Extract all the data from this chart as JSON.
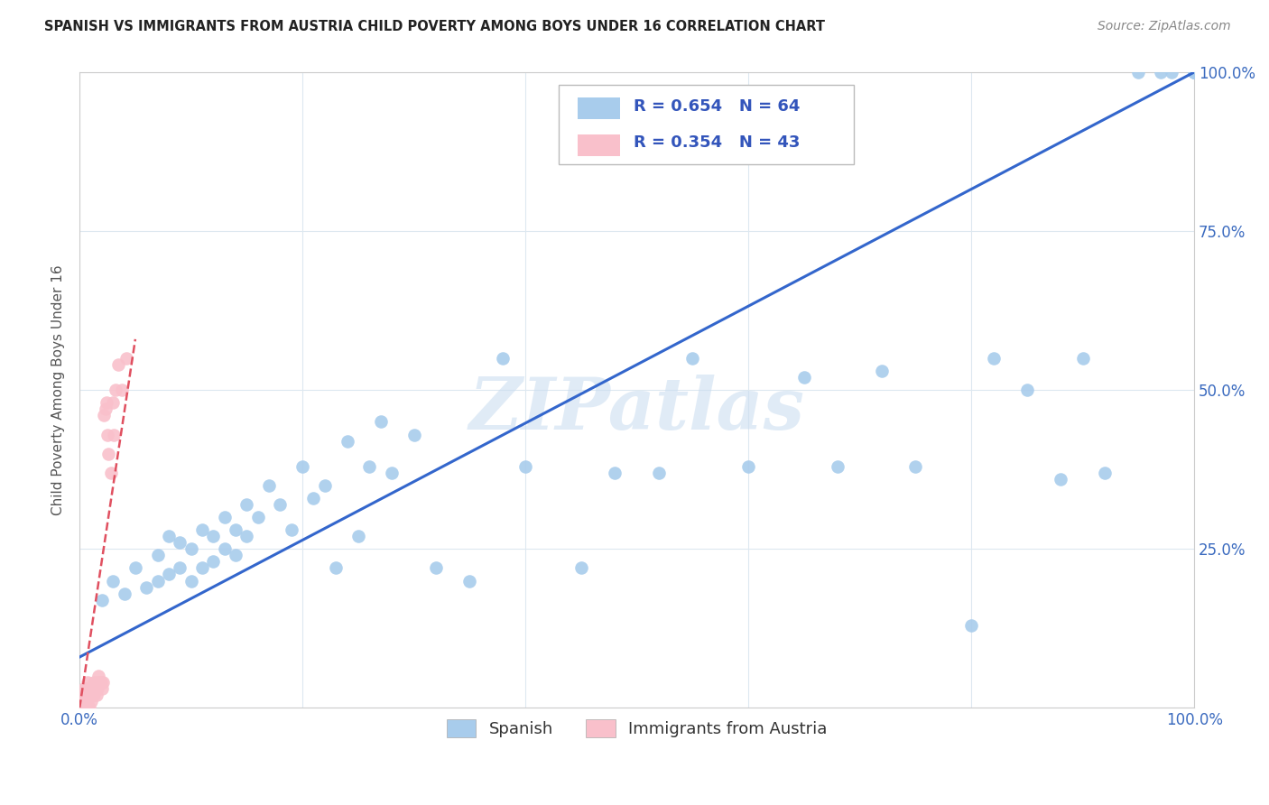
{
  "title": "SPANISH VS IMMIGRANTS FROM AUSTRIA CHILD POVERTY AMONG BOYS UNDER 16 CORRELATION CHART",
  "source": "Source: ZipAtlas.com",
  "ylabel": "Child Poverty Among Boys Under 16",
  "xlim": [
    0,
    1
  ],
  "ylim": [
    0,
    1
  ],
  "x_ticks": [
    0,
    0.2,
    0.4,
    0.6,
    0.8,
    1.0
  ],
  "y_ticks": [
    0,
    0.25,
    0.5,
    0.75,
    1.0
  ],
  "x_tick_labels": [
    "0.0%",
    "",
    "",
    "",
    "",
    "100.0%"
  ],
  "y_tick_labels_left": [
    "",
    "",
    "",
    "",
    ""
  ],
  "y_tick_labels_right": [
    "",
    "25.0%",
    "50.0%",
    "75.0%",
    "100.0%"
  ],
  "blue_color": "#a8ccec",
  "pink_color": "#f9c0cb",
  "trendline_blue_color": "#3366cc",
  "trendline_pink_color": "#e05060",
  "watermark": "ZIPatlas",
  "legend_blue_label": "R = 0.654   N = 64",
  "legend_pink_label": "R = 0.354   N = 43",
  "legend_bottom_blue": "Spanish",
  "legend_bottom_pink": "Immigrants from Austria",
  "blue_scatter_x": [
    0.02,
    0.03,
    0.04,
    0.05,
    0.06,
    0.07,
    0.07,
    0.08,
    0.08,
    0.09,
    0.09,
    0.1,
    0.1,
    0.11,
    0.11,
    0.12,
    0.12,
    0.13,
    0.13,
    0.14,
    0.14,
    0.15,
    0.15,
    0.16,
    0.17,
    0.18,
    0.19,
    0.2,
    0.21,
    0.22,
    0.23,
    0.24,
    0.25,
    0.26,
    0.27,
    0.28,
    0.3,
    0.32,
    0.35,
    0.38,
    0.4,
    0.45,
    0.48,
    0.52,
    0.55,
    0.6,
    0.65,
    0.68,
    0.72,
    0.75,
    0.8,
    0.82,
    0.85,
    0.88,
    0.9,
    0.92,
    0.95,
    0.97,
    0.98,
    1.0,
    1.0,
    1.0,
    1.0,
    1.0
  ],
  "blue_scatter_y": [
    0.17,
    0.2,
    0.18,
    0.22,
    0.19,
    0.2,
    0.24,
    0.21,
    0.27,
    0.22,
    0.26,
    0.2,
    0.25,
    0.22,
    0.28,
    0.23,
    0.27,
    0.25,
    0.3,
    0.24,
    0.28,
    0.27,
    0.32,
    0.3,
    0.35,
    0.32,
    0.28,
    0.38,
    0.33,
    0.35,
    0.22,
    0.42,
    0.27,
    0.38,
    0.45,
    0.37,
    0.43,
    0.22,
    0.2,
    0.55,
    0.38,
    0.22,
    0.37,
    0.37,
    0.55,
    0.38,
    0.52,
    0.38,
    0.53,
    0.38,
    0.13,
    0.55,
    0.5,
    0.36,
    0.55,
    0.37,
    1.0,
    1.0,
    1.0,
    1.0,
    1.0,
    1.0,
    1.0,
    1.0
  ],
  "pink_scatter_x": [
    0.002,
    0.003,
    0.003,
    0.004,
    0.004,
    0.005,
    0.005,
    0.005,
    0.006,
    0.006,
    0.007,
    0.007,
    0.008,
    0.008,
    0.009,
    0.009,
    0.01,
    0.01,
    0.011,
    0.012,
    0.013,
    0.013,
    0.014,
    0.015,
    0.015,
    0.016,
    0.017,
    0.018,
    0.019,
    0.02,
    0.021,
    0.022,
    0.023,
    0.024,
    0.025,
    0.026,
    0.028,
    0.03,
    0.031,
    0.032,
    0.035,
    0.038,
    0.042
  ],
  "pink_scatter_y": [
    0.0,
    0.01,
    0.02,
    0.0,
    0.03,
    0.0,
    0.01,
    0.02,
    0.0,
    0.03,
    0.01,
    0.04,
    0.02,
    0.03,
    0.0,
    0.02,
    0.01,
    0.03,
    0.02,
    0.03,
    0.02,
    0.04,
    0.03,
    0.02,
    0.04,
    0.03,
    0.05,
    0.04,
    0.04,
    0.03,
    0.04,
    0.46,
    0.47,
    0.48,
    0.43,
    0.4,
    0.37,
    0.48,
    0.43,
    0.5,
    0.54,
    0.5,
    0.55
  ],
  "blue_trend_x": [
    0.0,
    1.0
  ],
  "blue_trend_y": [
    0.08,
    1.0
  ],
  "pink_trend_x": [
    0.0,
    0.05
  ],
  "pink_trend_y": [
    0.0,
    0.58
  ]
}
